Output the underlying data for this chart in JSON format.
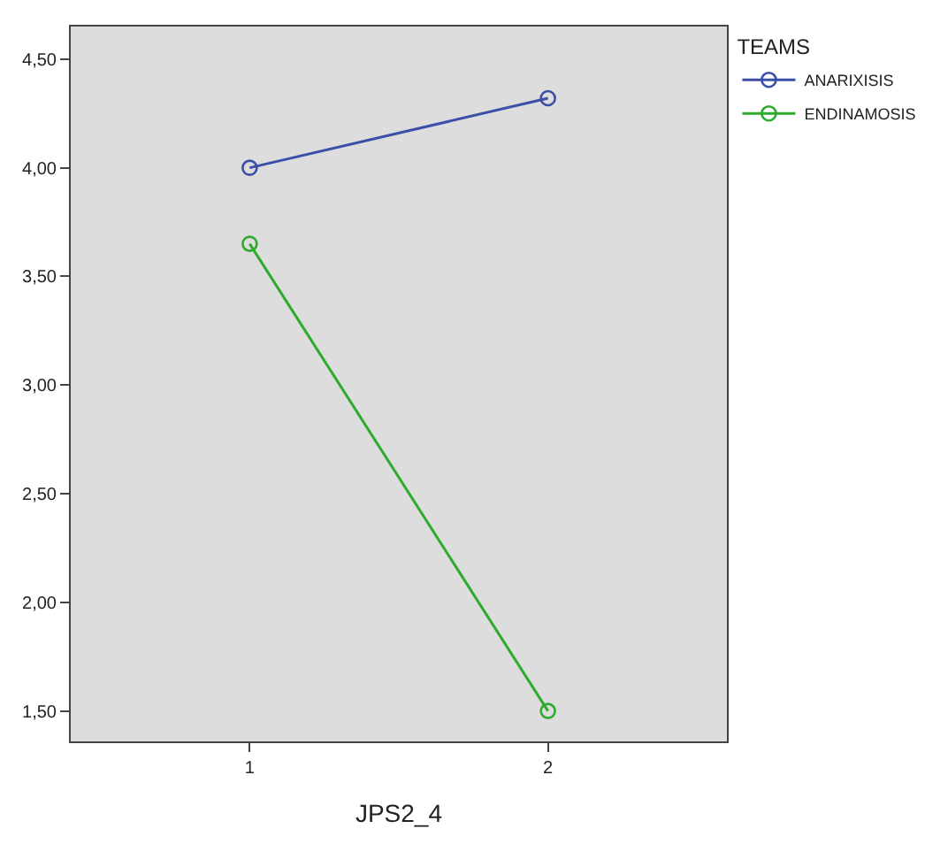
{
  "chart_data": {
    "type": "line",
    "xlabel": "JPS2_4",
    "legend_title": "TEAMS",
    "x": [
      1,
      2
    ],
    "series": [
      {
        "name": "ANARIXISIS",
        "color": "#3b4fa8",
        "values": [
          4.0,
          4.32
        ]
      },
      {
        "name": "ENDINAMOSIS",
        "color": "#2eaa2e",
        "values": [
          3.65,
          1.5
        ]
      }
    ],
    "xlim": [
      0.4,
      2.6
    ],
    "xticks": [
      1,
      2
    ],
    "ylim": [
      1.36,
      4.65
    ],
    "yticks": [
      {
        "value": 1.5,
        "label": "1,50"
      },
      {
        "value": 2.0,
        "label": "2,00"
      },
      {
        "value": 2.5,
        "label": "2,50"
      },
      {
        "value": 3.0,
        "label": "3,00"
      },
      {
        "value": 3.5,
        "label": "3,50"
      },
      {
        "value": 4.0,
        "label": "4,00"
      },
      {
        "value": 4.5,
        "label": "4,50"
      }
    ],
    "grid": false,
    "legend": "top right",
    "marker": "circle",
    "line_style": "solid"
  }
}
